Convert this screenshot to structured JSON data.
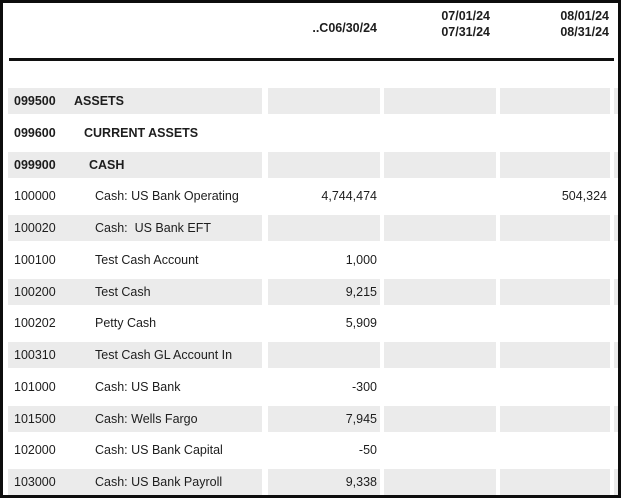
{
  "report": {
    "colors": {
      "frame_border": "#0d0d0d",
      "header_rule": "#101010",
      "row_shade": "#ebebeb",
      "text": "#1d1d1d",
      "background": "#ffffff"
    },
    "table": {
      "columns": [
        {
          "id": "period-1",
          "label_lines": [
            "..C06/30/24"
          ]
        },
        {
          "id": "period-2",
          "label_lines": [
            "07/01/24",
            "07/31/24"
          ]
        },
        {
          "id": "period-3",
          "label_lines": [
            "08/01/24",
            "08/31/24"
          ]
        }
      ],
      "rows": [
        {
          "account": "099500",
          "name": "ASSETS",
          "level": 1,
          "bold": true,
          "shaded": true,
          "values": [
            "",
            "",
            ""
          ]
        },
        {
          "account": "099600",
          "name": "CURRENT ASSETS",
          "level": 2,
          "bold": true,
          "shaded": false,
          "values": [
            "",
            "",
            ""
          ]
        },
        {
          "account": "099900",
          "name": "CASH",
          "level": 3,
          "bold": true,
          "shaded": true,
          "values": [
            "",
            "",
            ""
          ]
        },
        {
          "account": "100000",
          "name": "Cash: US Bank Operating",
          "level": 4,
          "bold": false,
          "shaded": false,
          "values": [
            "4,744,474",
            "",
            "504,324"
          ]
        },
        {
          "account": "100020",
          "name": "Cash:  US Bank EFT",
          "level": 4,
          "bold": false,
          "shaded": true,
          "values": [
            "",
            "",
            ""
          ]
        },
        {
          "account": "100100",
          "name": "Test Cash Account",
          "level": 4,
          "bold": false,
          "shaded": false,
          "values": [
            "1,000",
            "",
            ""
          ]
        },
        {
          "account": "100200",
          "name": "Test Cash",
          "level": 4,
          "bold": false,
          "shaded": true,
          "values": [
            "9,215",
            "",
            ""
          ]
        },
        {
          "account": "100202",
          "name": "Petty Cash",
          "level": 4,
          "bold": false,
          "shaded": false,
          "values": [
            "5,909",
            "",
            ""
          ]
        },
        {
          "account": "100310",
          "name": "Test Cash GL Account In",
          "level": 4,
          "bold": false,
          "shaded": true,
          "values": [
            "",
            "",
            ""
          ]
        },
        {
          "account": "101000",
          "name": "Cash: US Bank",
          "level": 4,
          "bold": false,
          "shaded": false,
          "values": [
            "-300",
            "",
            ""
          ]
        },
        {
          "account": "101500",
          "name": "Cash: Wells Fargo",
          "level": 4,
          "bold": false,
          "shaded": true,
          "values": [
            "7,945",
            "",
            ""
          ]
        },
        {
          "account": "102000",
          "name": "Cash: US Bank Capital",
          "level": 4,
          "bold": false,
          "shaded": false,
          "values": [
            "-50",
            "",
            ""
          ]
        },
        {
          "account": "103000",
          "name": "Cash: US Bank Payroll",
          "level": 4,
          "bold": false,
          "shaded": true,
          "values": [
            "9,338",
            "",
            ""
          ]
        }
      ]
    }
  }
}
